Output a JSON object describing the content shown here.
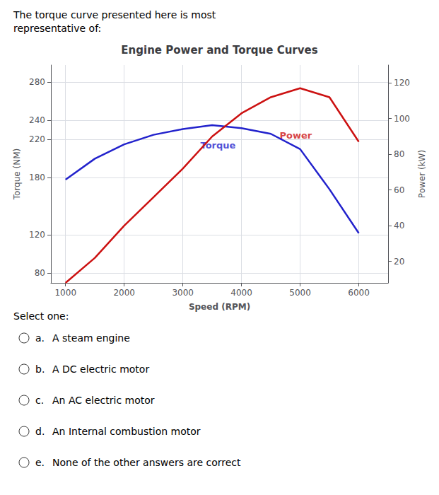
{
  "chart_data": {
    "type": "line",
    "title": "Engine Power and Torque Curves",
    "xlabel": "Speed (RPM)",
    "ylabel": "Torque (NM)",
    "y2label": "Power (kW)",
    "x": [
      1000,
      1500,
      2000,
      2500,
      3000,
      3500,
      4000,
      4500,
      5000,
      5500,
      6000
    ],
    "series": [
      {
        "name": "Torque",
        "color": "#2222cc",
        "values": [
          178,
          200,
          215,
          225,
          231,
          235,
          232,
          226,
          210,
          168,
          122
        ]
      },
      {
        "name": "Power",
        "color": "#cc1111",
        "axis": "y2",
        "values": [
          8,
          22,
          40,
          56,
          72,
          90,
          103,
          112,
          117,
          112,
          87
        ]
      }
    ],
    "xlim": [
      750,
      6500
    ],
    "xticks": [
      1000,
      2000,
      3000,
      4000,
      5000,
      6000
    ],
    "ylim": [
      70,
      298
    ],
    "yticks": [
      80,
      120,
      180,
      220,
      240,
      280
    ],
    "y2lim": [
      8,
      130
    ],
    "y2ticks": [
      20,
      40,
      60,
      80,
      100,
      120
    ],
    "grid": true,
    "annotations": [
      {
        "text": "Torque",
        "x": 3300,
        "y": 219
      },
      {
        "text": "Power",
        "x": 4650,
        "y": 93,
        "axis": "y2"
      }
    ],
    "question": [
      "The torque curve presented here is most",
      "representative of:"
    ],
    "select_text": "Select one:",
    "options": [
      [
        "a.",
        "A steam engine"
      ],
      [
        "b.",
        "A DC electric motor"
      ],
      [
        "c.",
        "An AC electric motor"
      ],
      [
        "d.",
        "An Internal combustion motor"
      ],
      [
        "e.",
        "None of the other answers are correct"
      ]
    ]
  }
}
